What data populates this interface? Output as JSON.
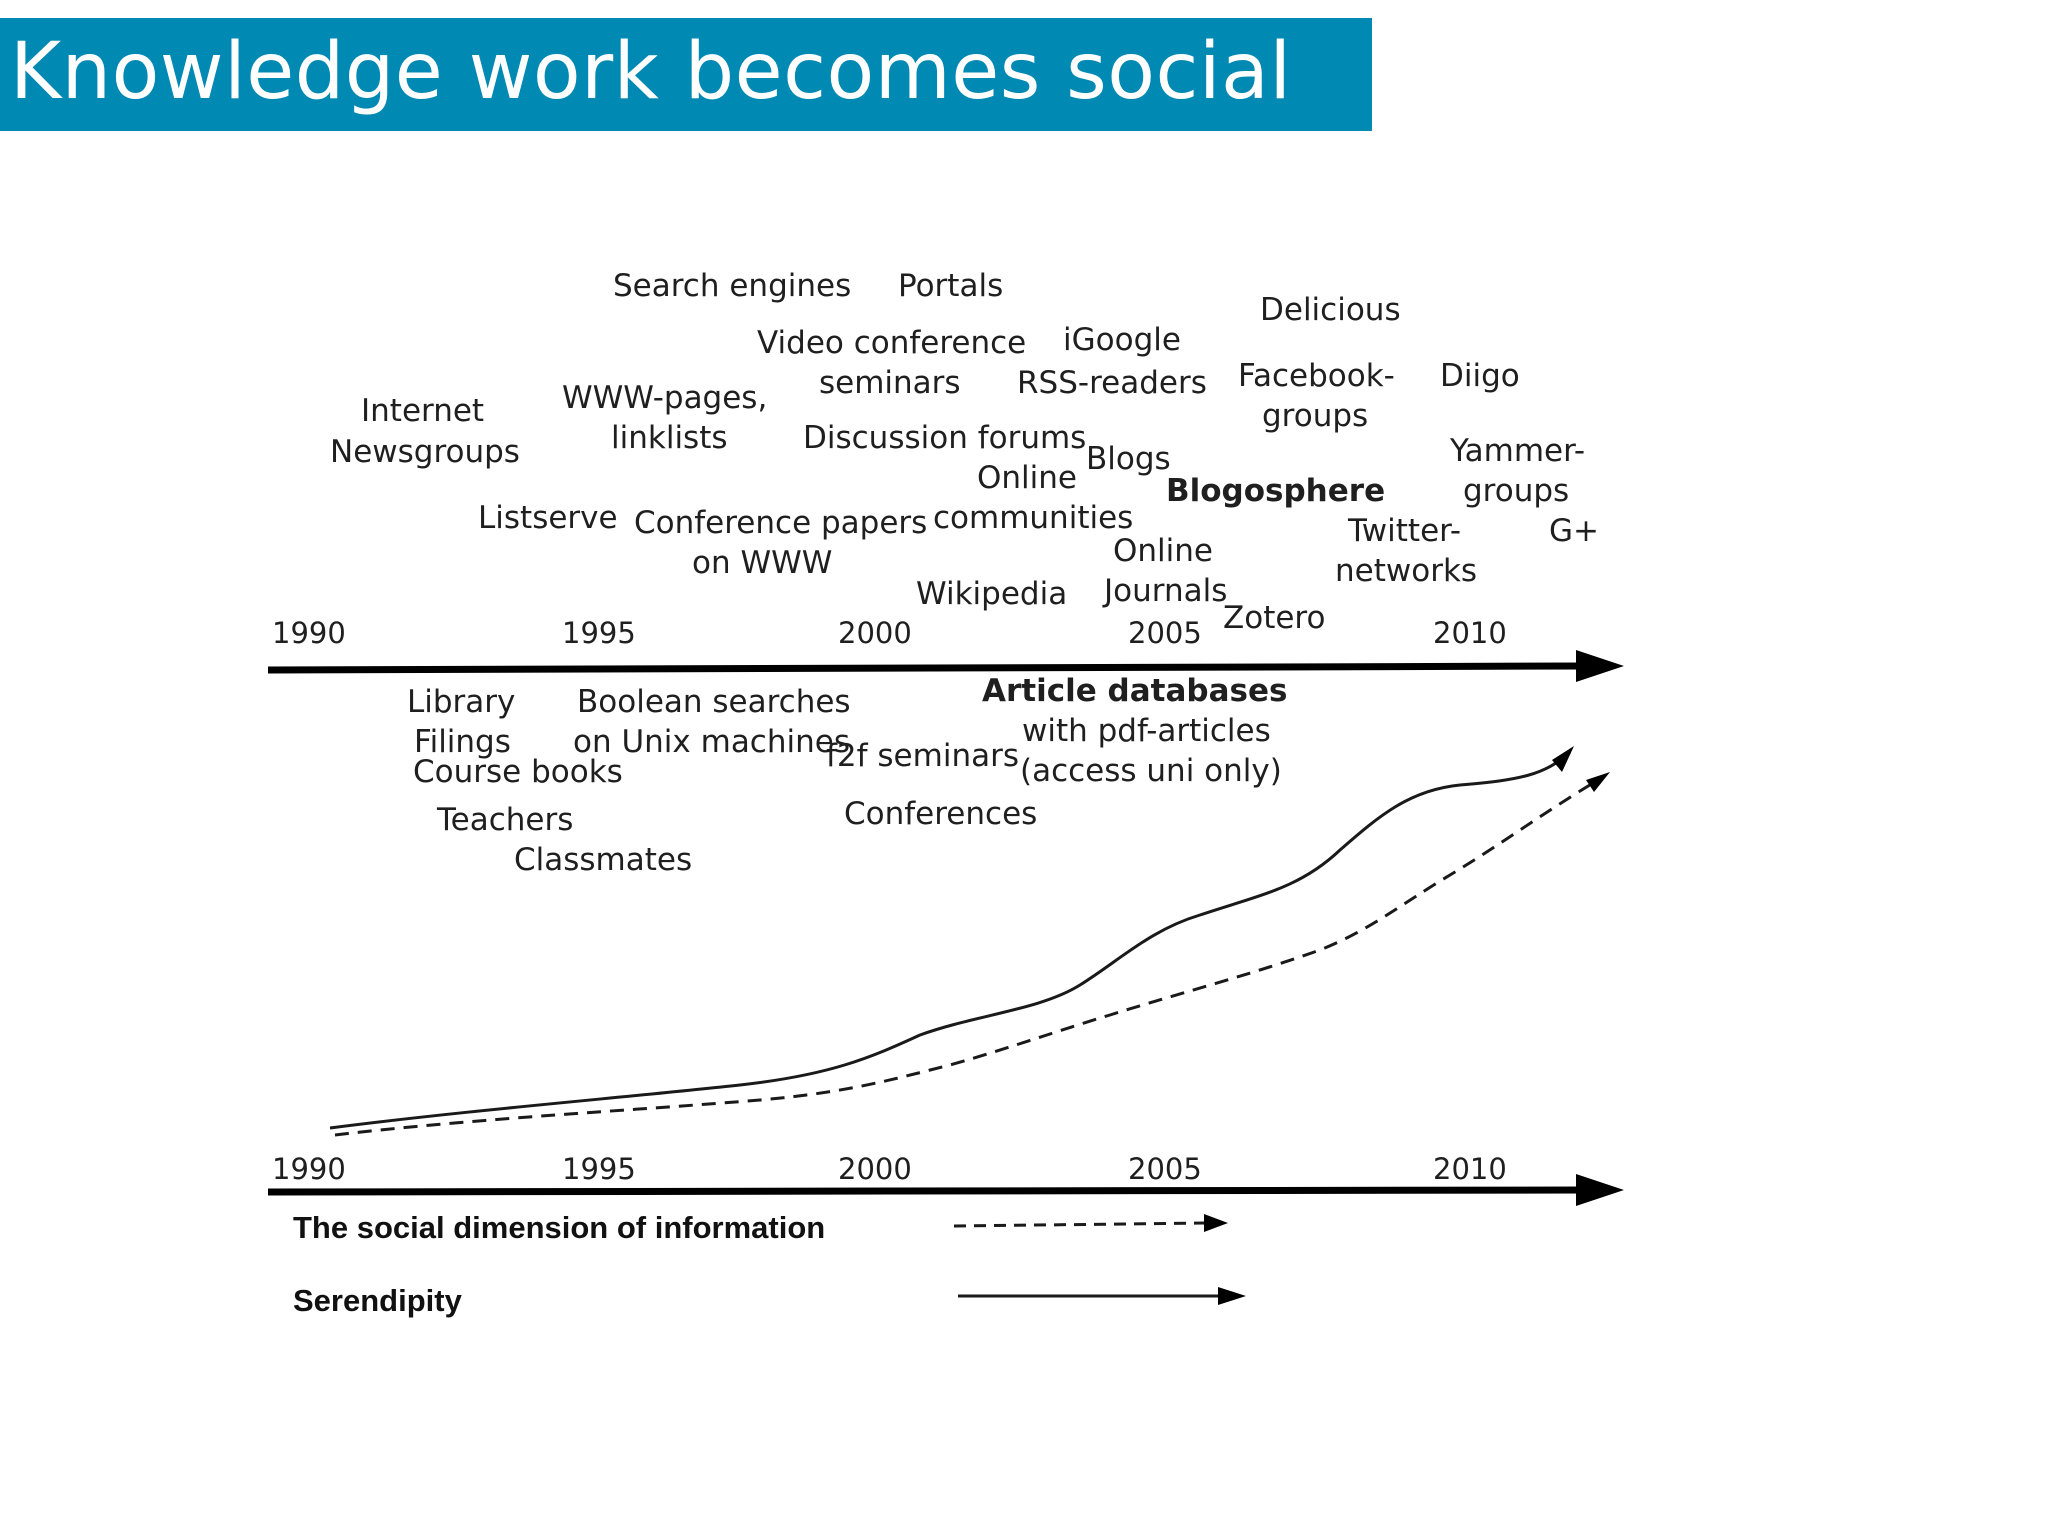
{
  "title": "Knowledge work becomes social",
  "timeline_years": [
    "1990",
    "1995",
    "2000",
    "2005",
    "2010"
  ],
  "upper_labels": {
    "search_engines": "Search engines",
    "portals": "Portals",
    "delicious": "Delicious",
    "video_conference": "Video conference",
    "igoogle": "iGoogle",
    "seminars": "seminars",
    "rss_readers": "RSS-readers",
    "facebook_groups_1": "Facebook-",
    "facebook_groups_2": "groups",
    "diigo": "Diigo",
    "internet": "Internet",
    "newsgroups": "Newsgroups",
    "www_pages": "WWW-pages,",
    "linklists": "linklists",
    "discussion_forums": "Discussion forums",
    "online_communities_1": "Online",
    "online_communities_2": "communities",
    "blogs": "Blogs",
    "yammer_groups_1": "Yammer-",
    "yammer_groups_2": "groups",
    "blogosphere": "Blogosphere",
    "listserve": "Listserve",
    "conference_papers_1": "Conference papers",
    "conference_papers_2": "on WWW",
    "twitter_networks_1": "Twitter-",
    "twitter_networks_2": "networks",
    "g_plus": "G+",
    "online_journals_1": "Online",
    "online_journals_2": "Journals",
    "wikipedia": "Wikipedia",
    "zotero": "Zotero"
  },
  "lower_labels": {
    "library": "Library",
    "filings": "Filings",
    "course_books": "Course books",
    "teachers": "Teachers",
    "classmates": "Classmates",
    "boolean_1": "Boolean searches",
    "boolean_2": "on Unix machines",
    "f2f_seminars": "f2f seminars",
    "conferences": "Conferences",
    "article_db_1": "Article databases",
    "article_db_2": "with pdf-articles",
    "article_db_3": "(access uni only)"
  },
  "legend": {
    "social": "The social dimension of information",
    "serendipity": "Serendipity"
  }
}
